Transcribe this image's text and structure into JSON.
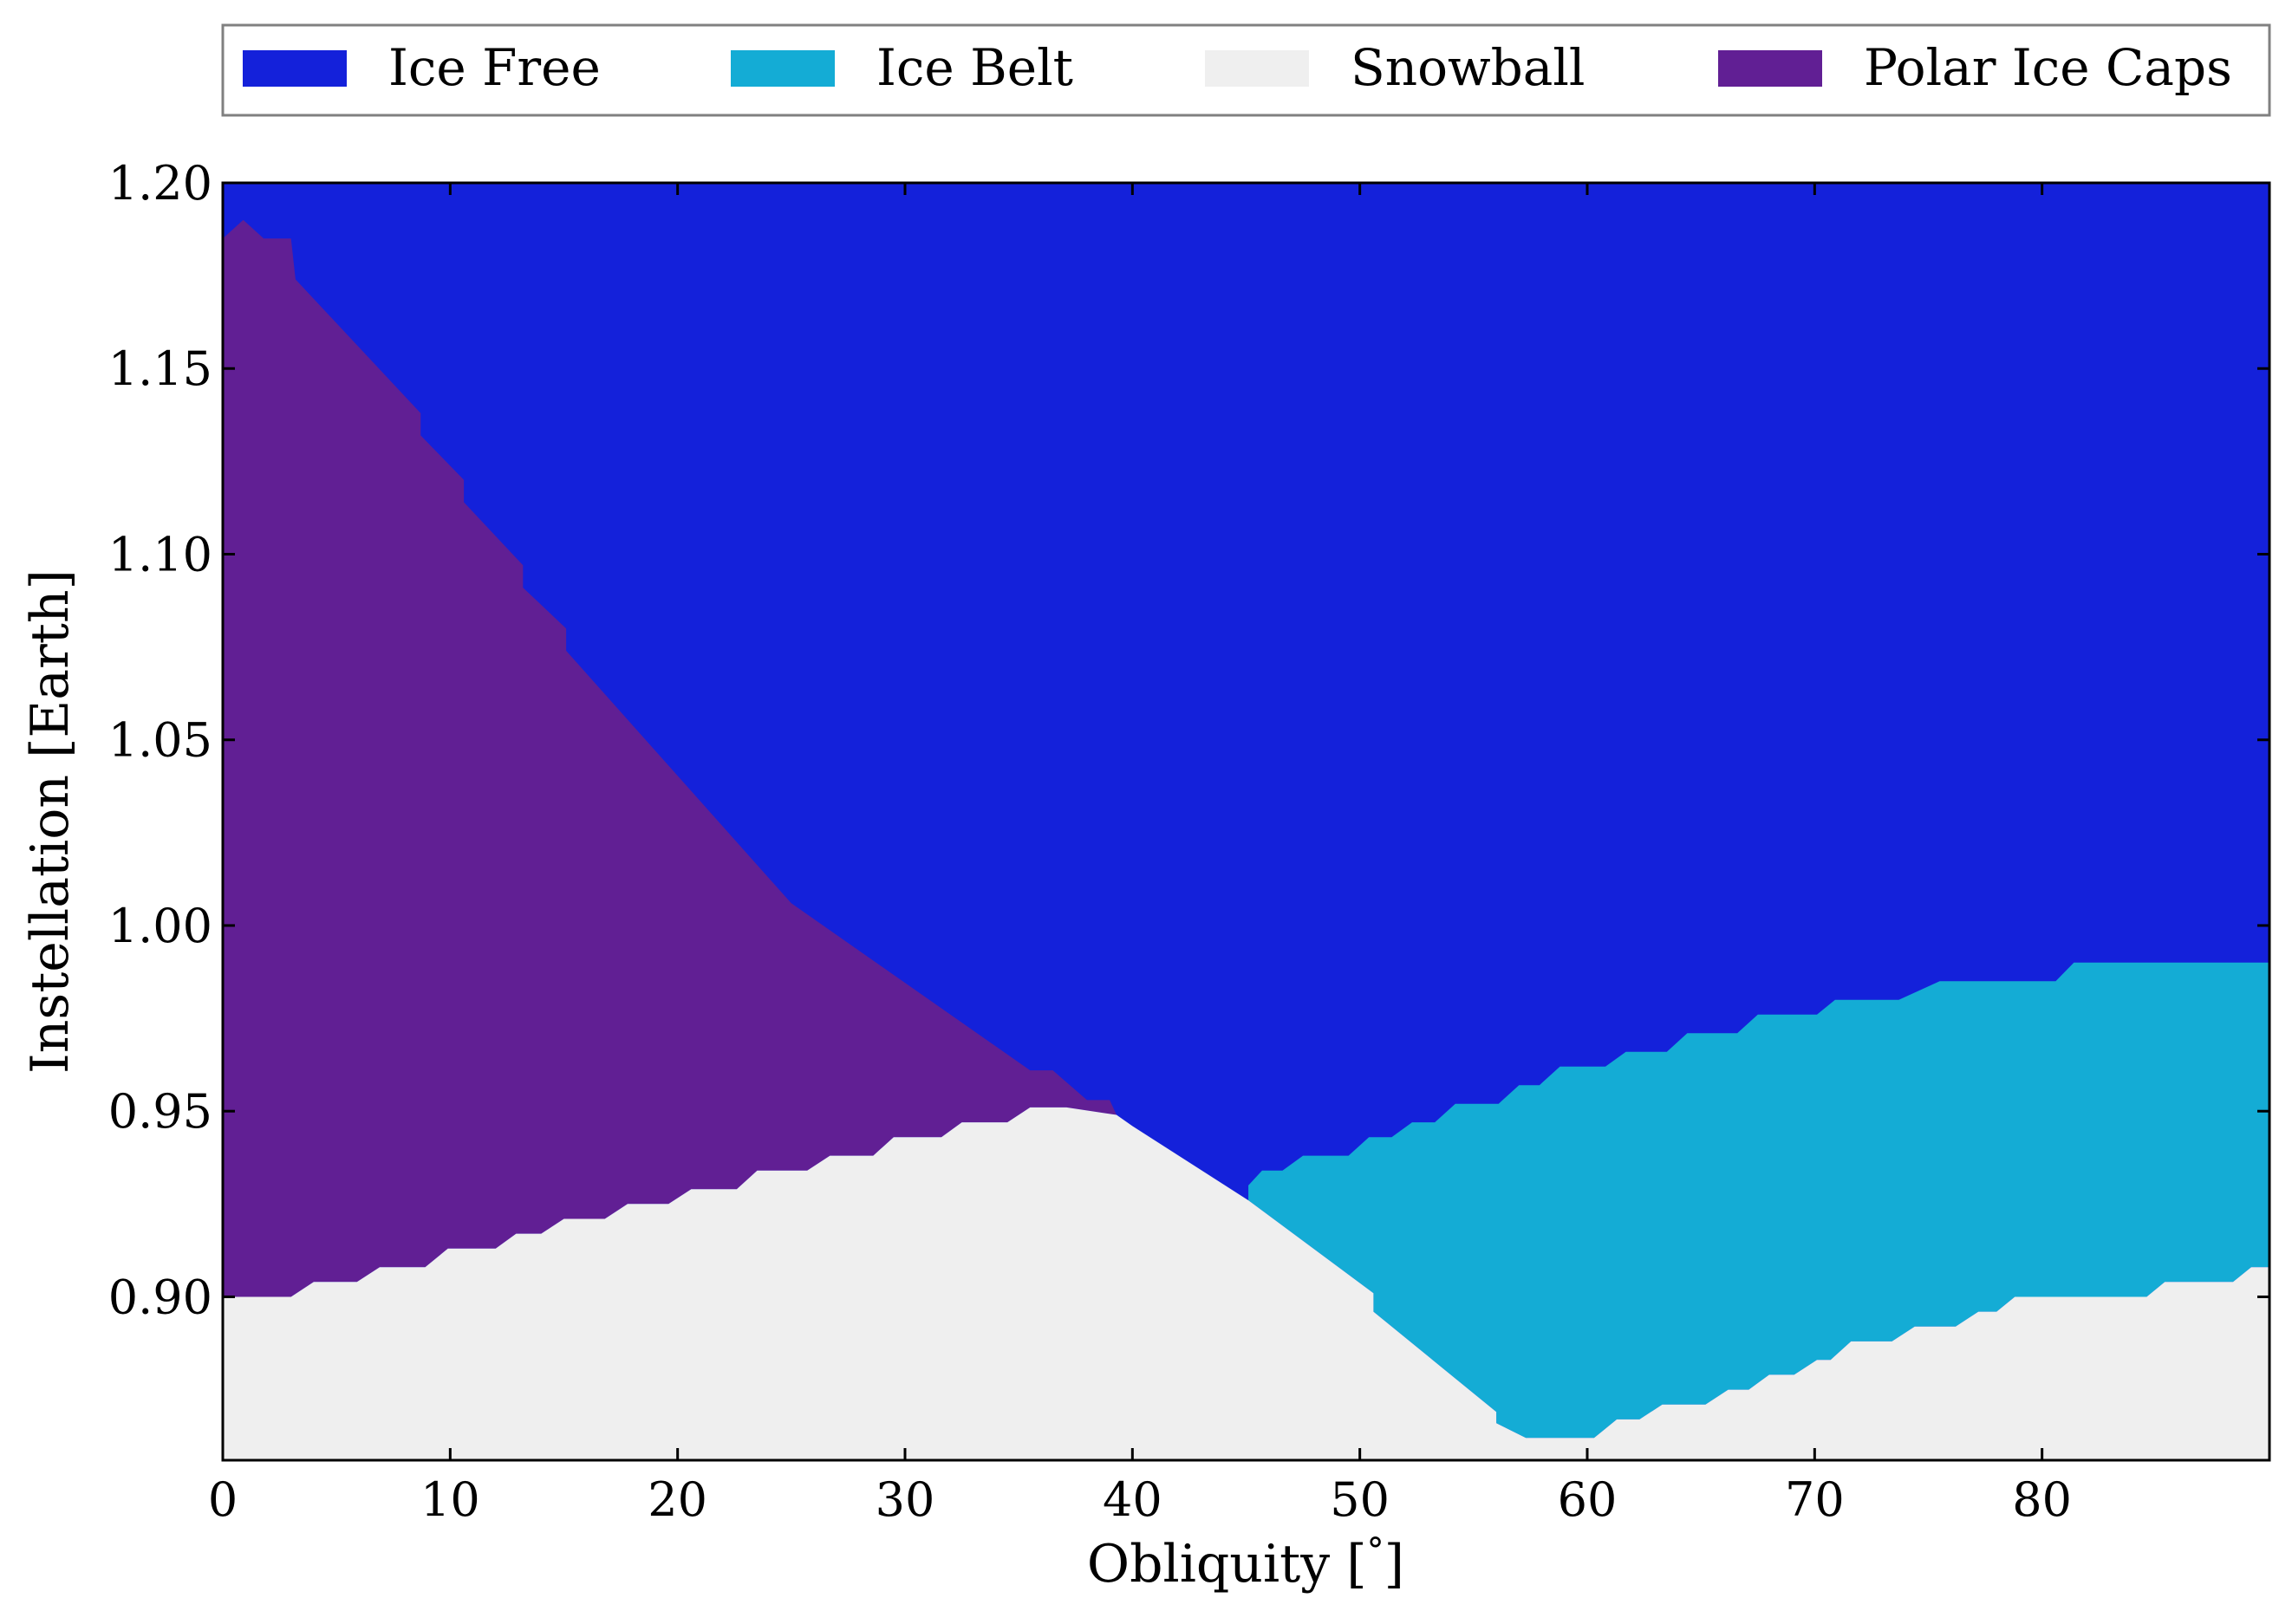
{
  "chart_data": {
    "type": "area",
    "xlabel": "Obliquity [$^\\circ$]",
    "xlabel_parts": [
      "Obliquity [",
      "°",
      "]"
    ],
    "ylabel": "Instellation [Earth]",
    "xlim": [
      0,
      90
    ],
    "ylim": [
      0.856,
      1.2
    ],
    "x_ticks": [
      "0",
      "10",
      "20",
      "30",
      "40",
      "50",
      "60",
      "70",
      "80"
    ],
    "y_ticks": [
      "0.90",
      "0.95",
      "1.00",
      "1.05",
      "1.10",
      "1.15",
      "1.20"
    ],
    "grid": false,
    "legend_position": "top",
    "legend": [
      {
        "name": "Ice Free",
        "color": "#1421da"
      },
      {
        "name": "Ice Belt",
        "color": "#14acd5"
      },
      {
        "name": "Snowball",
        "color": "#efefef"
      },
      {
        "name": "Polar Ice Caps",
        "color": "#611f94"
      }
    ],
    "series": [
      {
        "name": "Ice Free",
        "color": "#1421da",
        "region": "fills the plot above the boundaries below",
        "points": []
      },
      {
        "name": "Polar Ice Caps",
        "color": "#611f94",
        "points": [
          [
            0,
            0.9
          ],
          [
            0,
            1.185
          ],
          [
            0.9,
            1.19
          ],
          [
            1.8,
            1.185
          ],
          [
            3.0,
            1.185
          ],
          [
            3.2,
            1.174
          ],
          [
            8.7,
            1.138
          ],
          [
            8.7,
            1.132
          ],
          [
            10.6,
            1.12
          ],
          [
            10.6,
            1.114
          ],
          [
            13.2,
            1.097
          ],
          [
            13.2,
            1.091
          ],
          [
            15.1,
            1.08
          ],
          [
            15.1,
            1.074
          ],
          [
            25.0,
            1.006
          ],
          [
            35.5,
            0.961
          ],
          [
            36.5,
            0.961
          ],
          [
            38.0,
            0.953
          ],
          [
            39.0,
            0.953
          ],
          [
            39.3,
            0.949
          ],
          [
            37.1,
            0.951
          ],
          [
            35.5,
            0.951
          ],
          [
            34.5,
            0.947
          ],
          [
            32.5,
            0.947
          ],
          [
            31.6,
            0.943
          ],
          [
            29.5,
            0.943
          ],
          [
            28.6,
            0.938
          ],
          [
            26.7,
            0.938
          ],
          [
            25.7,
            0.934
          ],
          [
            23.5,
            0.934
          ],
          [
            22.6,
            0.929
          ],
          [
            20.6,
            0.929
          ],
          [
            19.6,
            0.925
          ],
          [
            17.8,
            0.925
          ],
          [
            16.8,
            0.921
          ],
          [
            15.0,
            0.921
          ],
          [
            14.0,
            0.917
          ],
          [
            12.9,
            0.917
          ],
          [
            12.0,
            0.913
          ],
          [
            9.9,
            0.913
          ],
          [
            8.9,
            0.908
          ],
          [
            6.9,
            0.908
          ],
          [
            5.9,
            0.904
          ],
          [
            4.0,
            0.904
          ],
          [
            3.0,
            0.9
          ]
        ]
      },
      {
        "name": "Ice Belt",
        "color": "#14acd5",
        "points": [
          [
            45.1,
            0.93
          ],
          [
            45.7,
            0.934
          ],
          [
            46.6,
            0.934
          ],
          [
            47.5,
            0.938
          ],
          [
            49.5,
            0.938
          ],
          [
            50.4,
            0.943
          ],
          [
            51.4,
            0.943
          ],
          [
            52.3,
            0.947
          ],
          [
            53.3,
            0.947
          ],
          [
            54.2,
            0.952
          ],
          [
            56.1,
            0.952
          ],
          [
            57.0,
            0.957
          ],
          [
            57.9,
            0.957
          ],
          [
            58.8,
            0.962
          ],
          [
            60.8,
            0.962
          ],
          [
            61.7,
            0.966
          ],
          [
            63.5,
            0.966
          ],
          [
            64.4,
            0.971
          ],
          [
            66.6,
            0.971
          ],
          [
            67.5,
            0.976
          ],
          [
            70.1,
            0.976
          ],
          [
            70.9,
            0.98
          ],
          [
            73.7,
            0.98
          ],
          [
            75.5,
            0.985
          ],
          [
            80.6,
            0.985
          ],
          [
            81.4,
            0.99
          ],
          [
            90.0,
            0.99
          ],
          [
            90.0,
            0.908
          ],
          [
            89.2,
            0.908
          ],
          [
            88.4,
            0.904
          ],
          [
            85.4,
            0.904
          ],
          [
            84.6,
            0.9
          ],
          [
            81.6,
            0.9
          ],
          [
            80.8,
            0.9
          ],
          [
            78.8,
            0.9
          ],
          [
            78.0,
            0.896
          ],
          [
            77.2,
            0.896
          ],
          [
            76.2,
            0.892
          ],
          [
            74.4,
            0.892
          ],
          [
            73.4,
            0.888
          ],
          [
            71.6,
            0.888
          ],
          [
            70.7,
            0.883
          ],
          [
            70.1,
            0.883
          ],
          [
            69.1,
            0.879
          ],
          [
            68.0,
            0.879
          ],
          [
            67.1,
            0.875
          ],
          [
            66.2,
            0.875
          ],
          [
            65.2,
            0.871
          ],
          [
            63.3,
            0.871
          ],
          [
            62.3,
            0.867
          ],
          [
            61.3,
            0.867
          ],
          [
            60.3,
            0.862
          ],
          [
            57.3,
            0.862
          ],
          [
            56.0,
            0.866
          ],
          [
            56.0,
            0.869
          ],
          [
            50.6,
            0.896
          ],
          [
            50.6,
            0.901
          ],
          [
            45.1,
            0.926
          ]
        ]
      },
      {
        "name": "Snowball",
        "color": "#efefef",
        "points": [
          [
            0,
            0.856
          ],
          [
            0,
            0.9
          ],
          [
            3.0,
            0.9
          ],
          [
            4.0,
            0.904
          ],
          [
            5.9,
            0.904
          ],
          [
            6.9,
            0.908
          ],
          [
            8.9,
            0.908
          ],
          [
            9.9,
            0.913
          ],
          [
            12.0,
            0.913
          ],
          [
            12.9,
            0.917
          ],
          [
            14.0,
            0.917
          ],
          [
            15.0,
            0.921
          ],
          [
            16.8,
            0.921
          ],
          [
            17.8,
            0.925
          ],
          [
            19.6,
            0.925
          ],
          [
            20.6,
            0.929
          ],
          [
            22.6,
            0.929
          ],
          [
            23.5,
            0.934
          ],
          [
            25.7,
            0.934
          ],
          [
            26.7,
            0.938
          ],
          [
            28.6,
            0.938
          ],
          [
            29.5,
            0.943
          ],
          [
            31.6,
            0.943
          ],
          [
            32.5,
            0.947
          ],
          [
            34.5,
            0.947
          ],
          [
            35.5,
            0.951
          ],
          [
            37.1,
            0.951
          ],
          [
            39.3,
            0.949
          ],
          [
            40.0,
            0.946
          ],
          [
            45.1,
            0.926
          ],
          [
            50.6,
            0.901
          ],
          [
            50.6,
            0.896
          ],
          [
            56.0,
            0.869
          ],
          [
            56.0,
            0.866
          ],
          [
            57.3,
            0.862
          ],
          [
            60.3,
            0.862
          ],
          [
            61.3,
            0.867
          ],
          [
            62.3,
            0.867
          ],
          [
            63.3,
            0.871
          ],
          [
            65.2,
            0.871
          ],
          [
            66.2,
            0.875
          ],
          [
            67.1,
            0.875
          ],
          [
            68.0,
            0.879
          ],
          [
            69.1,
            0.879
          ],
          [
            70.1,
            0.883
          ],
          [
            70.7,
            0.883
          ],
          [
            71.6,
            0.888
          ],
          [
            73.4,
            0.888
          ],
          [
            74.4,
            0.892
          ],
          [
            76.2,
            0.892
          ],
          [
            77.2,
            0.896
          ],
          [
            78.0,
            0.896
          ],
          [
            78.8,
            0.9
          ],
          [
            80.8,
            0.9
          ],
          [
            81.6,
            0.9
          ],
          [
            84.6,
            0.9
          ],
          [
            85.4,
            0.904
          ],
          [
            88.4,
            0.904
          ],
          [
            89.2,
            0.908
          ],
          [
            90.0,
            0.908
          ],
          [
            90.0,
            0.856
          ]
        ]
      }
    ]
  }
}
